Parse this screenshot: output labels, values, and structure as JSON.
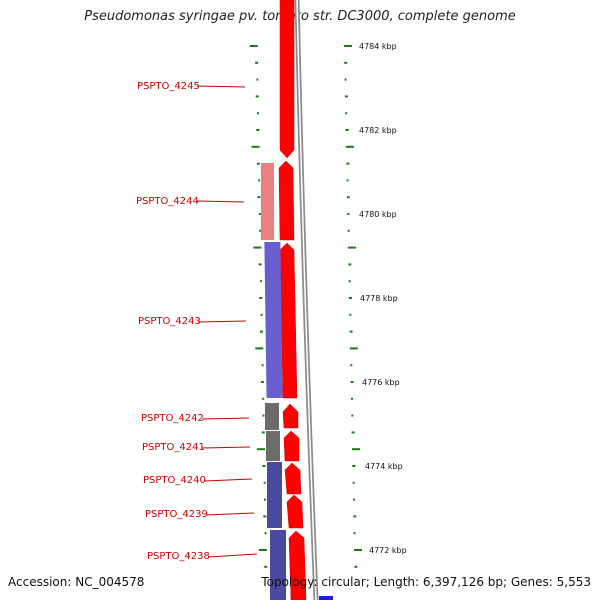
{
  "title": "Pseudomonas syringae pv. tomato str. DC3000, complete genome",
  "accession_text": "Accession: NC_004578",
  "summary_text": "Topology: circular; Length: 6,397,126 bp; Genes: 5,553",
  "scale_labels": [
    "4784 kbp",
    "4782 kbp",
    "4780 kbp",
    "4778 kbp",
    "4776 kbp",
    "4774 kbp",
    "4772 kbp"
  ],
  "genes": [
    {
      "label": "PSPTO_4245",
      "color": "#e41a1c"
    },
    {
      "label": "PSPTO_4244",
      "color": "#e41a1c"
    },
    {
      "label": "PSPTO_4243",
      "color": "#e41a1c"
    },
    {
      "label": "PSPTO_4242",
      "color": "#e41a1c"
    },
    {
      "label": "PSPTO_4241",
      "color": "#e41a1c"
    },
    {
      "label": "PSPTO_4240",
      "color": "#e41a1c"
    },
    {
      "label": "PSPTO_4239",
      "color": "#e41a1c"
    },
    {
      "label": "PSPTO_4238",
      "color": "#e41a1c"
    }
  ],
  "colors": {
    "forward_gene": "#ff0000",
    "backbone": "#8c8c8c",
    "cog_light_red": "#e88080",
    "cog_blue": "#6a5fcf",
    "cog_gray": "#6b6b6b",
    "cog_dark_blue": "#4a4aa0",
    "gc_tick": "#1a7a1a",
    "label": "#cc0000"
  }
}
